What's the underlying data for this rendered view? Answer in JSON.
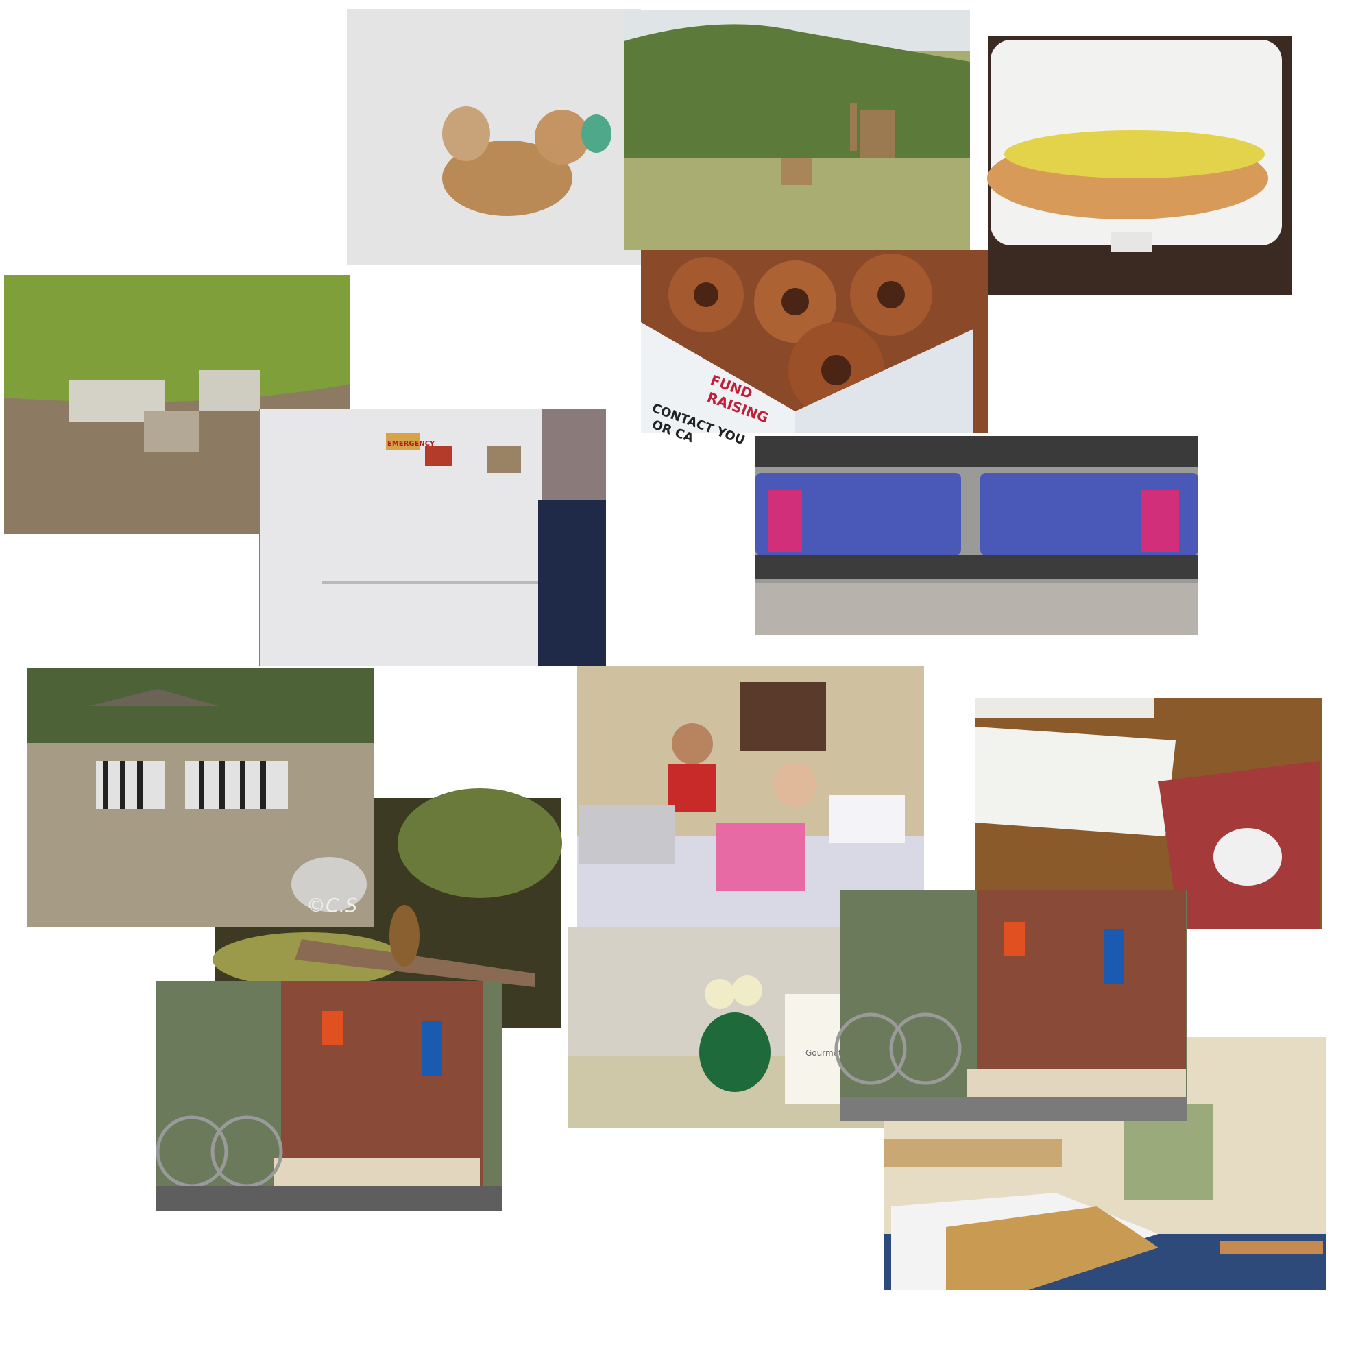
{
  "fridge": {
    "magnet": "EMERGENCY"
  },
  "donuts": {
    "box_lines": [
      "FUND",
      "RAISING",
      "CONTACT YOU",
      "OR CA"
    ]
  },
  "zebras_zoo": {
    "watermark": "©C.S"
  },
  "vase": {
    "card_text": "Gourmet C"
  }
}
